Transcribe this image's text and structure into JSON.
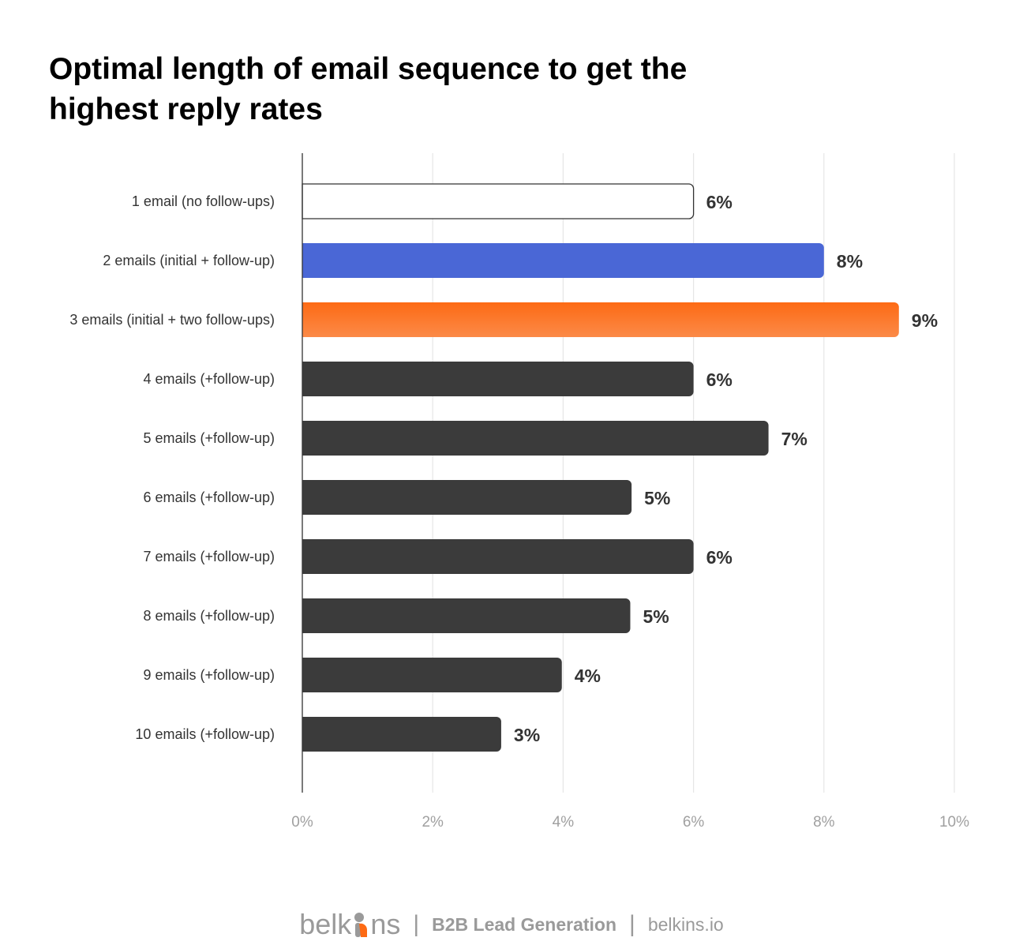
{
  "title": "Optimal length of email sequence to get the highest reply rates",
  "chart_data": {
    "type": "bar",
    "orientation": "horizontal",
    "title": "Optimal length of email sequence to get the highest reply rates",
    "xlabel": "",
    "ylabel": "",
    "xlim": [
      0,
      10
    ],
    "x_ticks": [
      "0%",
      "2%",
      "4%",
      "6%",
      "8%",
      "10%"
    ],
    "grid": "vertical",
    "categories": [
      "1 email (no follow-ups)",
      "2 emails (initial + follow-up)",
      "3 emails (initial + two follow-ups)",
      "4 emails (+follow-up)",
      "5 emails (+follow-up)",
      "6 emails (+follow-up)",
      "7 emails (+follow-up)",
      "8 emails (+follow-up)",
      "9 emails (+follow-up)",
      "10 emails (+follow-up)"
    ],
    "values": [
      6.0,
      8.0,
      9.15,
      6.0,
      7.15,
      5.05,
      6.0,
      5.03,
      3.98,
      3.05
    ],
    "value_labels": [
      "6%",
      "8%",
      "9%",
      "6%",
      "7%",
      "5%",
      "6%",
      "5%",
      "4%",
      "3%"
    ],
    "bar_colors": [
      "#ffffff",
      "#4a67d6",
      "#fd6a14",
      "#3b3b3b",
      "#3b3b3b",
      "#3b3b3b",
      "#3b3b3b",
      "#3b3b3b",
      "#3b3b3b",
      "#3b3b3b"
    ]
  },
  "footer": {
    "logo_left": "belk",
    "logo_right": "ns",
    "tagline": "B2B Lead Generation",
    "site": "belkins.io",
    "separator": "|"
  },
  "colors": {
    "axis": "#333333",
    "grid": "#e6e6e6",
    "label_text": "#333333",
    "tick_text": "#a0a0a0",
    "value_text": "#333333",
    "logo_accent": "#fd6a14"
  }
}
